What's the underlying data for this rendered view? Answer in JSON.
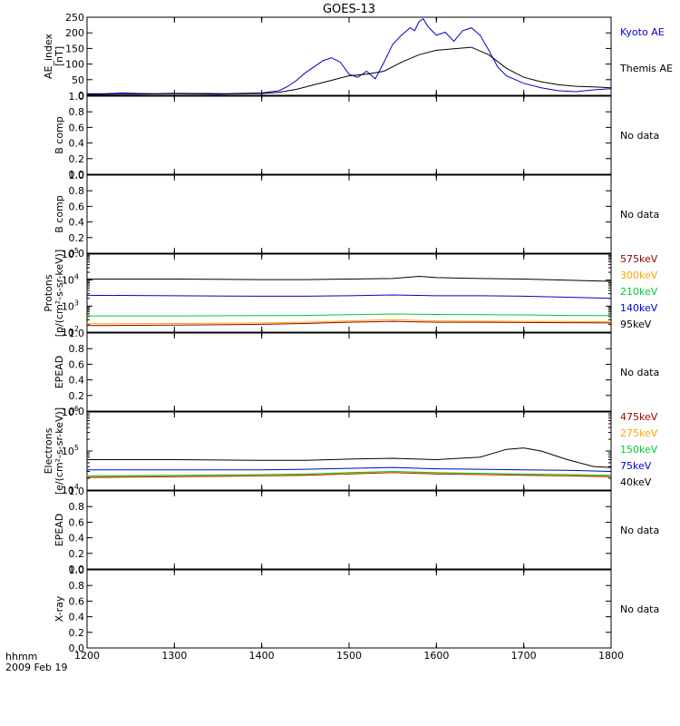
{
  "title": "GOES-13",
  "footer": {
    "time_label": "hhmm",
    "date_label": "2009 Feb 19"
  },
  "x_ticks": [
    "1200",
    "1300",
    "1400",
    "1500",
    "1600",
    "1700",
    "1800"
  ],
  "chart_data": [
    {
      "type": "line",
      "ylabel": "AE_index [nT]",
      "xlim": [
        1200,
        1800
      ],
      "ylim": [
        0,
        260
      ],
      "y_ticks": [
        "0",
        "50",
        "100",
        "150",
        "200",
        "250"
      ],
      "series": [
        {
          "name": "Kyoto AE",
          "color": "#0000cc",
          "x": [
            1200,
            1220,
            1240,
            1260,
            1280,
            1300,
            1320,
            1340,
            1360,
            1380,
            1400,
            1420,
            1430,
            1440,
            1450,
            1460,
            1470,
            1480,
            1490,
            1500,
            1510,
            1520,
            1530,
            1540,
            1550,
            1560,
            1570,
            1575,
            1580,
            1585,
            1590,
            1600,
            1610,
            1620,
            1630,
            1640,
            1650,
            1660,
            1670,
            1680,
            1700,
            1720,
            1740,
            1760,
            1780,
            1800
          ],
          "y": [
            5,
            5,
            8,
            6,
            5,
            7,
            6,
            6,
            5,
            7,
            8,
            15,
            30,
            50,
            75,
            95,
            115,
            125,
            110,
            70,
            60,
            80,
            55,
            110,
            170,
            200,
            225,
            215,
            245,
            255,
            230,
            200,
            210,
            180,
            215,
            225,
            200,
            150,
            95,
            65,
            40,
            25,
            15,
            12,
            18,
            22
          ]
        },
        {
          "name": "Themis AE",
          "color": "#000000",
          "x": [
            1200,
            1250,
            1300,
            1350,
            1400,
            1420,
            1440,
            1460,
            1480,
            1500,
            1520,
            1540,
            1560,
            1580,
            1600,
            1620,
            1640,
            1660,
            1680,
            1700,
            1720,
            1740,
            1760,
            1780,
            1800
          ],
          "y": [
            3,
            4,
            5,
            4,
            6,
            10,
            20,
            35,
            50,
            65,
            70,
            80,
            110,
            135,
            150,
            155,
            160,
            135,
            90,
            60,
            45,
            35,
            30,
            28,
            25
          ]
        }
      ]
    },
    {
      "type": "line",
      "ylabel": "B comp",
      "ylim": [
        0,
        1.0
      ],
      "y_ticks": [
        "0.0",
        "0.2",
        "0.4",
        "0.6",
        "0.8",
        "1.0"
      ],
      "status": "No data",
      "series": []
    },
    {
      "type": "line",
      "ylabel": "B comp",
      "ylim": [
        0,
        1.0
      ],
      "y_ticks": [
        "0.0",
        "0.2",
        "0.4",
        "0.6",
        "0.8",
        "1.0"
      ],
      "status": "No data",
      "series": []
    },
    {
      "type": "line",
      "ylabel_line1": "Protons",
      "ylabel_line2": "[p/(cm²-s-sr-keV)]",
      "log_scale": true,
      "ylim": [
        100,
        100000
      ],
      "y_ticks": [
        {
          "base": "10",
          "exp": "2"
        },
        {
          "base": "10",
          "exp": "3"
        },
        {
          "base": "10",
          "exp": "4"
        },
        {
          "base": "10",
          "exp": "5"
        }
      ],
      "series": [
        {
          "name": "575keV",
          "color": "#990000",
          "x": [
            1200,
            1300,
            1400,
            1450,
            1500,
            1550,
            1600,
            1650,
            1700,
            1750,
            1800
          ],
          "y": [
            180,
            185,
            200,
            215,
            240,
            260,
            240,
            240,
            235,
            230,
            225
          ]
        },
        {
          "name": "300keV",
          "color": "#ffa500",
          "x": [
            1200,
            1300,
            1400,
            1450,
            1500,
            1550,
            1600,
            1650,
            1700,
            1750,
            1800
          ],
          "y": [
            210,
            215,
            225,
            240,
            270,
            300,
            270,
            265,
            260,
            255,
            250
          ]
        },
        {
          "name": "210keV",
          "color": "#00cc33",
          "x": [
            1200,
            1300,
            1400,
            1450,
            1500,
            1550,
            1600,
            1650,
            1700,
            1750,
            1800
          ],
          "y": [
            420,
            420,
            430,
            440,
            470,
            500,
            480,
            470,
            460,
            440,
            430
          ]
        },
        {
          "name": "140keV",
          "color": "#0000cc",
          "x": [
            1200,
            1300,
            1400,
            1450,
            1500,
            1550,
            1600,
            1650,
            1700,
            1750,
            1800
          ],
          "y": [
            2600,
            2500,
            2400,
            2400,
            2500,
            2700,
            2500,
            2500,
            2400,
            2200,
            2000
          ]
        },
        {
          "name": "95keV",
          "color": "#000000",
          "x": [
            1200,
            1300,
            1400,
            1450,
            1500,
            1550,
            1580,
            1600,
            1650,
            1700,
            1750,
            1800
          ],
          "y": [
            11000,
            11000,
            10500,
            10500,
            11000,
            11500,
            14000,
            12500,
            11500,
            11000,
            10000,
            9000
          ]
        }
      ]
    },
    {
      "type": "line",
      "ylabel": "EPEAD",
      "ylim": [
        0,
        1.0
      ],
      "y_ticks": [
        "0.0",
        "0.2",
        "0.4",
        "0.6",
        "0.8",
        "1.0"
      ],
      "status": "No data",
      "series": []
    },
    {
      "type": "line",
      "ylabel_line1": "Electrons",
      "ylabel_line2": "[e/(cm²-s-sr-keV)]",
      "log_scale": true,
      "ylim": [
        10000,
        1000000
      ],
      "y_ticks": [
        {
          "base": "10",
          "exp": "4"
        },
        {
          "base": "10",
          "exp": "5"
        },
        {
          "base": "10",
          "exp": "6"
        }
      ],
      "series": [
        {
          "name": "475keV",
          "color": "#990000",
          "x": [
            1200,
            1300,
            1400,
            1450,
            1500,
            1550,
            1600,
            1650,
            1700,
            1750,
            1800
          ],
          "y": [
            21000,
            22000,
            23000,
            24000,
            26000,
            28000,
            26000,
            25000,
            24000,
            23000,
            22000
          ]
        },
        {
          "name": "275keV",
          "color": "#ffa500",
          "x": [
            1200,
            1300,
            1400,
            1450,
            1500,
            1550,
            1600,
            1650,
            1700,
            1750,
            1800
          ],
          "y": [
            22000,
            23000,
            24000,
            25000,
            27000,
            29000,
            27000,
            26000,
            25000,
            24000,
            23000
          ]
        },
        {
          "name": "150keV",
          "color": "#00cc33",
          "x": [
            1200,
            1300,
            1400,
            1450,
            1500,
            1550,
            1600,
            1650,
            1700,
            1750,
            1800
          ],
          "y": [
            23000,
            24000,
            25000,
            26000,
            28000,
            30000,
            28000,
            27000,
            26000,
            25000,
            24000
          ]
        },
        {
          "name": "75keV",
          "color": "#0000cc",
          "x": [
            1200,
            1300,
            1400,
            1450,
            1500,
            1550,
            1600,
            1650,
            1700,
            1750,
            1800
          ],
          "y": [
            33000,
            33000,
            33000,
            34000,
            36000,
            38000,
            35000,
            34000,
            33000,
            32000,
            30000
          ]
        },
        {
          "name": "40keV",
          "color": "#000000",
          "x": [
            1200,
            1300,
            1400,
            1450,
            1500,
            1550,
            1600,
            1650,
            1680,
            1700,
            1720,
            1750,
            1780,
            1800
          ],
          "y": [
            60000,
            60000,
            58000,
            58000,
            62000,
            65000,
            60000,
            70000,
            110000,
            120000,
            100000,
            60000,
            40000,
            38000
          ]
        }
      ]
    },
    {
      "type": "line",
      "ylabel": "EPEAD",
      "ylim": [
        0,
        1.0
      ],
      "y_ticks": [
        "0.0",
        "0.2",
        "0.4",
        "0.6",
        "0.8",
        "1.0"
      ],
      "status": "No data",
      "series": []
    },
    {
      "type": "line",
      "ylabel": "X-ray",
      "ylim": [
        0,
        1.0
      ],
      "y_ticks": [
        "0.0",
        "0.2",
        "0.4",
        "0.6",
        "0.8",
        "1.0"
      ],
      "status": "No data",
      "series": []
    }
  ]
}
